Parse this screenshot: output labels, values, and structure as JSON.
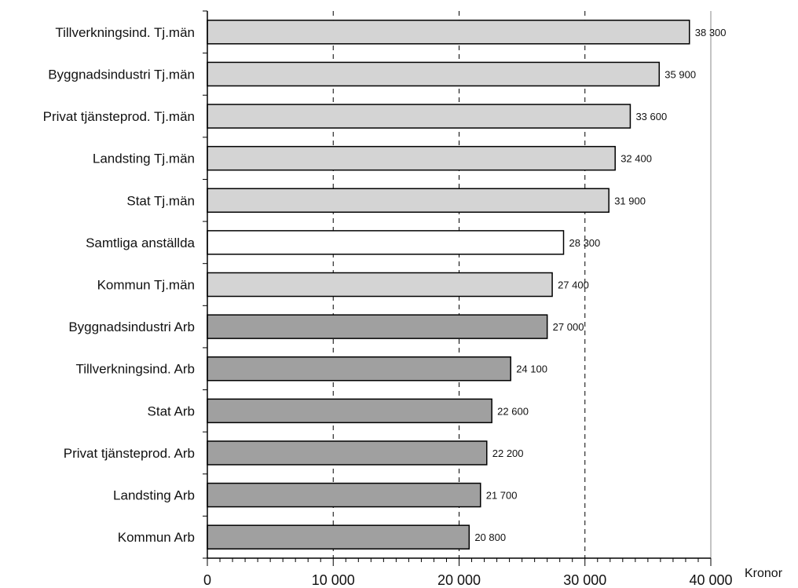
{
  "chart_data": {
    "type": "bar",
    "orientation": "horizontal",
    "categories": [
      "Tillverkningsind. Tj.män",
      "Byggnadsindustri Tj.män",
      "Privat tjänsteprod. Tj.män",
      "Landsting Tj.män",
      "Stat Tj.män",
      "Samtliga anställda",
      "Kommun Tj.män",
      "Byggnadsindustri Arb",
      "Tillverkningsind. Arb",
      "Stat Arb",
      "Privat tjänsteprod. Arb",
      "Landsting Arb",
      "Kommun Arb"
    ],
    "values": [
      38300,
      35900,
      33600,
      32400,
      31900,
      28300,
      27400,
      27000,
      24100,
      22600,
      22200,
      21700,
      20800
    ],
    "value_labels": [
      "38 300",
      "35 900",
      "33 600",
      "32 400",
      "31 900",
      "28 300",
      "27 400",
      "27 000",
      "24 100",
      "22 600",
      "22 200",
      "21 700",
      "20 800"
    ],
    "groups": [
      "tjm",
      "tjm",
      "tjm",
      "tjm",
      "tjm",
      "all",
      "tjm",
      "arb",
      "arb",
      "arb",
      "arb",
      "arb",
      "arb"
    ],
    "group_colors": {
      "tjm": "#d4d4d4",
      "all": "#ffffff",
      "arb": "#a0a0a0"
    },
    "xlim": [
      0,
      40000
    ],
    "x_ticks": [
      0,
      10000,
      20000,
      30000,
      40000
    ],
    "x_tick_labels": [
      "0",
      "10 000",
      "20 000",
      "30 000",
      "40 000"
    ],
    "xlabel": "Kronor",
    "grid": "dashed vertical at major ticks",
    "title": "",
    "ylabel": ""
  }
}
